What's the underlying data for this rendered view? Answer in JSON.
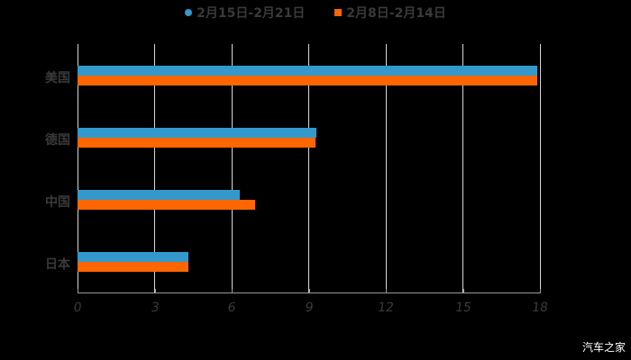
{
  "chart_data": {
    "type": "bar",
    "orientation": "horizontal",
    "title": "",
    "categories": [
      "美国",
      "德国",
      "中国",
      "日本"
    ],
    "series": [
      {
        "name": "2月15日-2月21日",
        "color": "#3399cc",
        "values": [
          17.9,
          9.3,
          6.3,
          4.3
        ]
      },
      {
        "name": "2月8日-2月14日",
        "color": "#ff6600",
        "values": [
          17.9,
          9.25,
          6.9,
          4.3
        ]
      }
    ],
    "xlabel": "",
    "ylabel": "",
    "xlim": [
      0,
      18
    ],
    "xticks": [
      "0",
      "3",
      "6",
      "9",
      "12",
      "15",
      "18"
    ],
    "grid": "vertical",
    "legend_position": "top"
  },
  "legend": {
    "items": [
      {
        "label": "2月15日-2月21日",
        "color": "#3399cc",
        "shape": "circle"
      },
      {
        "label": "2月8日-2月14日",
        "color": "#ff6600",
        "shape": "square"
      }
    ]
  },
  "watermark": "汽车之家"
}
